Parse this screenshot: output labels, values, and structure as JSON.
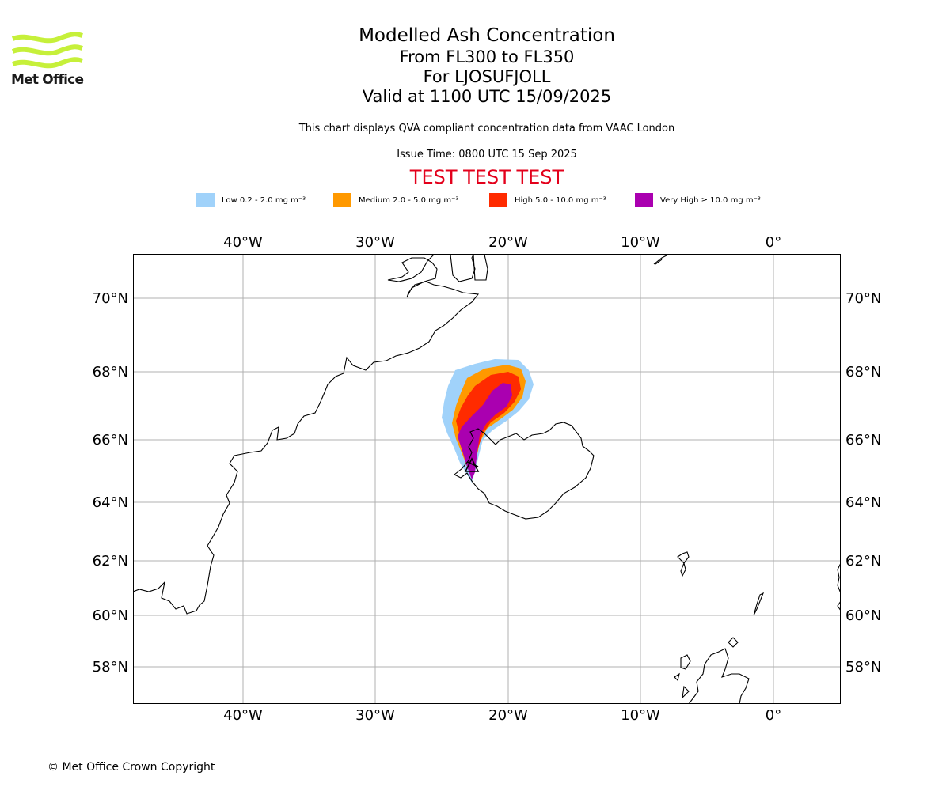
{
  "logo": {
    "text": "Met Office",
    "color": "#c6f03a"
  },
  "title": {
    "line1": "Modelled Ash Concentration",
    "line2": "From FL300 to FL350",
    "line3": "For LJOSUFJOLL",
    "line4": "Valid at 1100 UTC 15/09/2025",
    "note": "This chart displays QVA compliant concentration data from VAAC London",
    "issue": "Issue Time: 0800 UTC 15 Sep 2025",
    "test": "TEST TEST TEST"
  },
  "legend": [
    {
      "label": "Low 0.2 - 2.0 mg m⁻³",
      "color": "#a0d2fa"
    },
    {
      "label": "Medium 2.0 - 5.0 mg m⁻³",
      "color": "#ff9900"
    },
    {
      "label": "High 5.0 - 10.0 mg m⁻³",
      "color": "#ff2b00"
    },
    {
      "label": "Very High  ≥  10.0 mg m⁻³",
      "color": "#aa00b0"
    }
  ],
  "axes": {
    "longitude_labels": [
      "40°W",
      "30°W",
      "20°W",
      "10°W",
      "0°"
    ],
    "latitude_labels": [
      "70°N",
      "68°N",
      "66°N",
      "64°N",
      "62°N",
      "60°N",
      "58°N"
    ]
  },
  "copyright": "© Met Office Crown Copyright"
}
